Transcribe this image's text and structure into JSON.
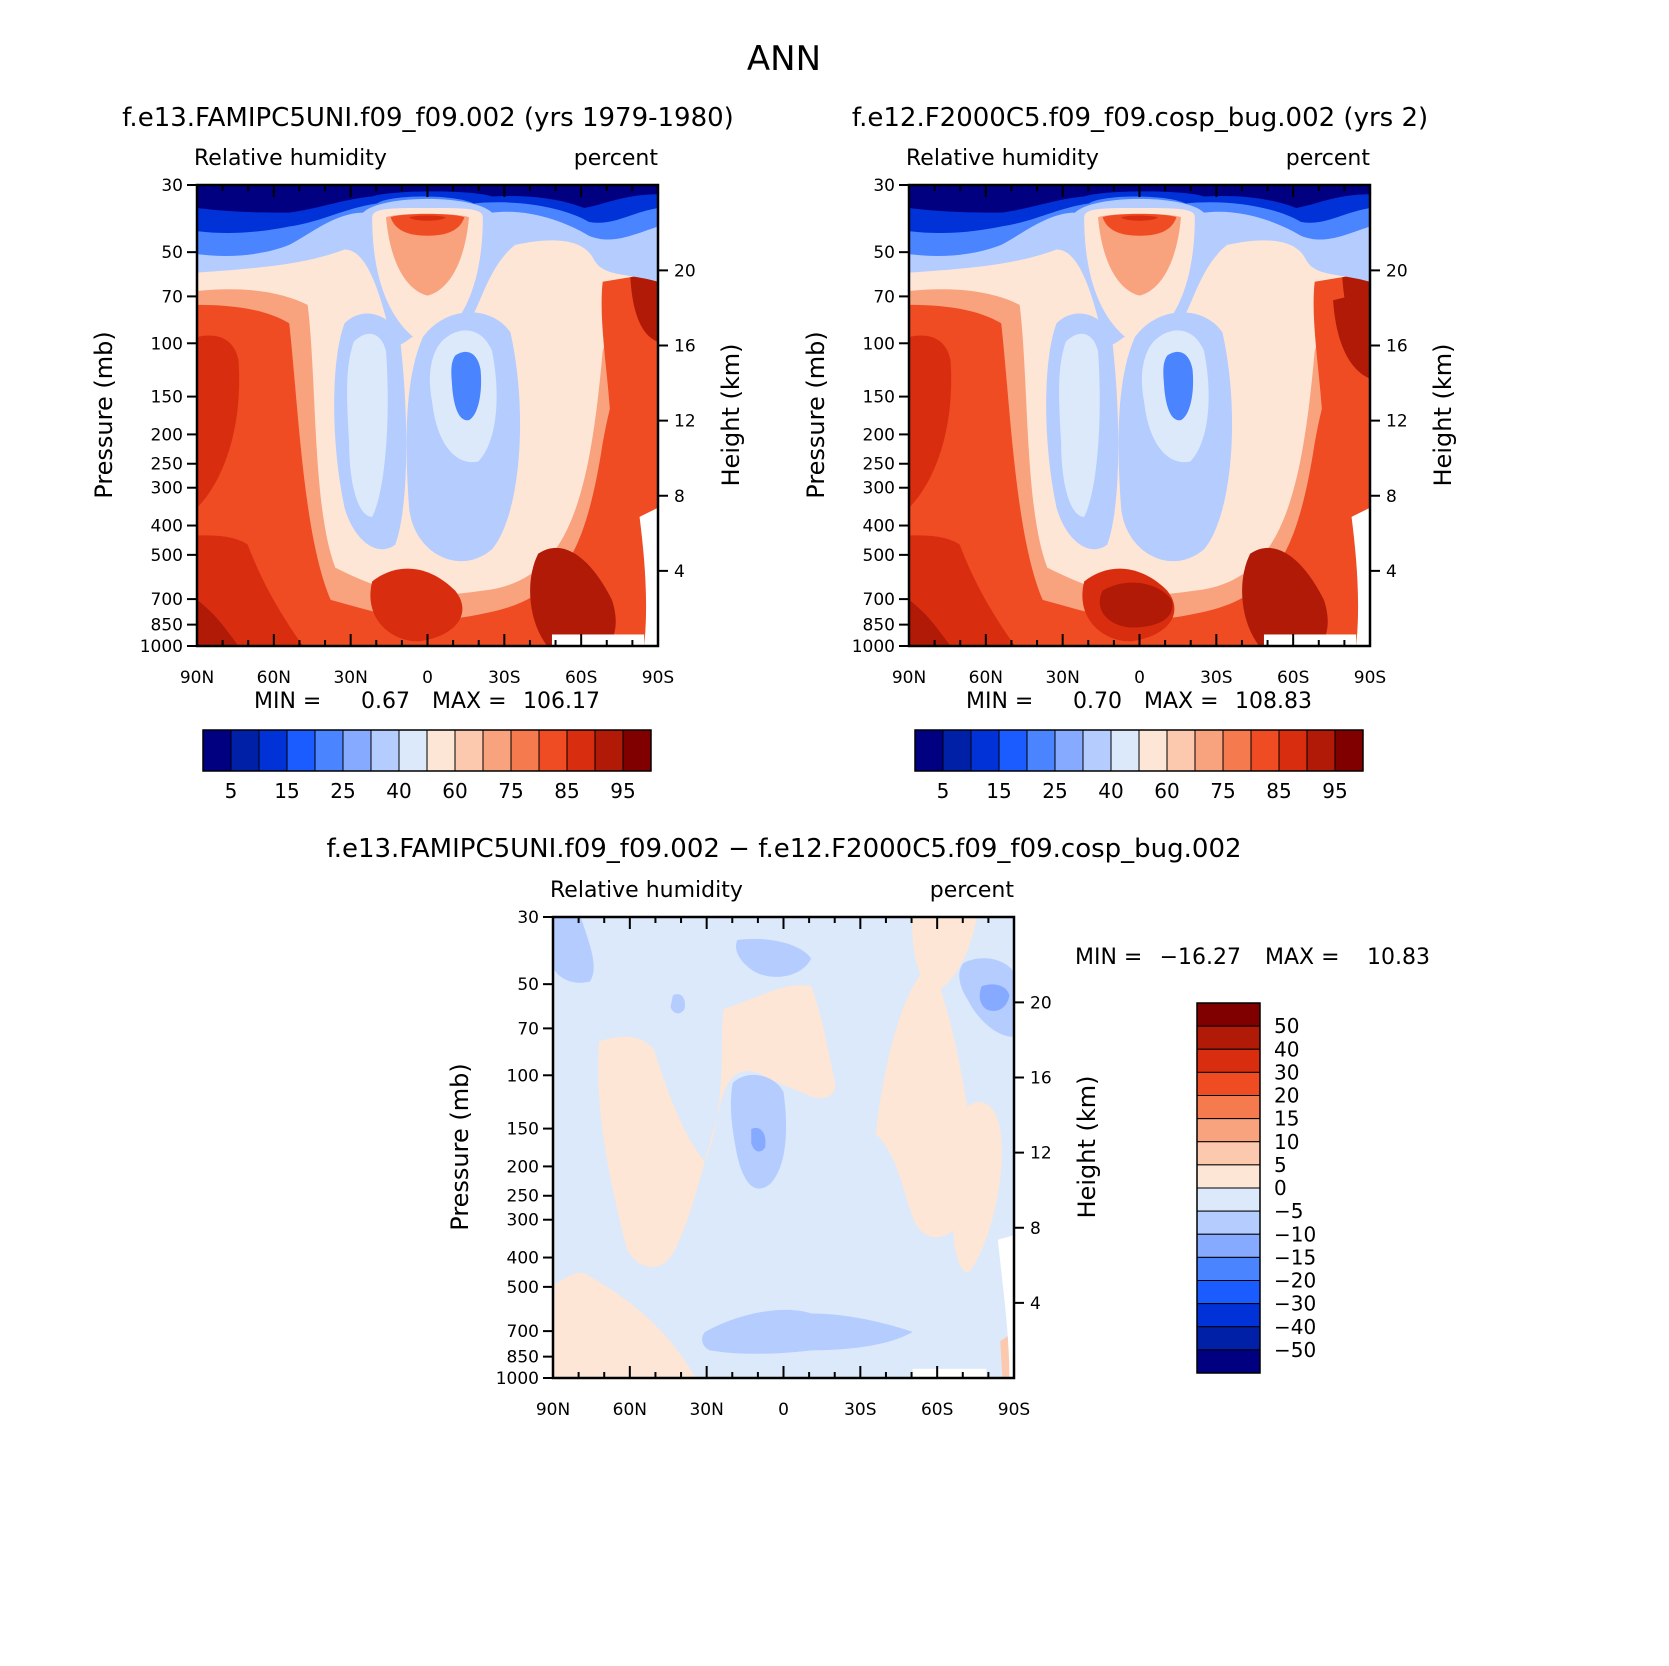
{
  "page": {
    "title": "ANN"
  },
  "palettes": {
    "abs": [
      "#000080",
      "#0020a8",
      "#0032d8",
      "#1a5cff",
      "#4a84ff",
      "#86aaff",
      "#b5ccff",
      "#dbe9fb",
      "#fde6d6",
      "#fcc9ae",
      "#f9a27e",
      "#f57b4f",
      "#ef4c23",
      "#d92d0f",
      "#b01a07",
      "#800000"
    ],
    "diff": [
      "#000080",
      "#0020a8",
      "#0032d8",
      "#1a5cff",
      "#4a84ff",
      "#86aaff",
      "#b5ccff",
      "#dbe9fb",
      "#fde6d6",
      "#fcc9ae",
      "#f9a27e",
      "#f57b4f",
      "#ef4c23",
      "#d92d0f",
      "#b01a07",
      "#800000"
    ]
  },
  "chart_data": [
    {
      "type": "contour",
      "panel": "test",
      "title": "f.e13.FAMIPC5UNI.f09_f09.002 (yrs 1979-1980)",
      "left_label": "Relative humidity",
      "right_label": "percent",
      "ylabel": "Pressure (mb)",
      "y2label": "Height (km)",
      "x_ticks": [
        "90N",
        "60N",
        "30N",
        "0",
        "30S",
        "60S",
        "90S"
      ],
      "y_ticks": [
        30,
        50,
        70,
        100,
        150,
        200,
        250,
        300,
        400,
        500,
        700,
        850,
        1000
      ],
      "y_tick_labels": [
        "30",
        "50",
        "70",
        "100",
        "150",
        "200",
        "250",
        "300",
        "400",
        "500",
        "700",
        "850",
        "1000"
      ],
      "y2_ticks": [
        20,
        16,
        12,
        8,
        4
      ],
      "stats": {
        "min_label": "MIN =",
        "min": "0.67",
        "max_label": "MAX =",
        "max": "106.17"
      },
      "legend_labels": [
        "5",
        "15",
        "25",
        "40",
        "60",
        "75",
        "85",
        "95"
      ]
    },
    {
      "type": "contour",
      "panel": "control",
      "title": "f.e12.F2000C5.f09_f09.cosp_bug.002 (yrs 2)",
      "left_label": "Relative humidity",
      "right_label": "percent",
      "ylabel": "Pressure (mb)",
      "y2label": "Height (km)",
      "x_ticks": [
        "90N",
        "60N",
        "30N",
        "0",
        "30S",
        "60S",
        "90S"
      ],
      "y_ticks": [
        30,
        50,
        70,
        100,
        150,
        200,
        250,
        300,
        400,
        500,
        700,
        850,
        1000
      ],
      "y_tick_labels": [
        "30",
        "50",
        "70",
        "100",
        "150",
        "200",
        "250",
        "300",
        "400",
        "500",
        "700",
        "850",
        "1000"
      ],
      "y2_ticks": [
        20,
        16,
        12,
        8,
        4
      ],
      "stats": {
        "min_label": "MIN =",
        "min": "0.70",
        "max_label": "MAX =",
        "max": "108.83"
      },
      "legend_labels": [
        "5",
        "15",
        "25",
        "40",
        "60",
        "75",
        "85",
        "95"
      ]
    },
    {
      "type": "contour",
      "panel": "difference",
      "title": "f.e13.FAMIPC5UNI.f09_f09.002 − f.e12.F2000C5.f09_f09.cosp_bug.002",
      "left_label": "Relative humidity",
      "right_label": "percent",
      "ylabel": "Pressure (mb)",
      "y2label": "Height (km)",
      "x_ticks": [
        "90N",
        "60N",
        "30N",
        "0",
        "30S",
        "60S",
        "90S"
      ],
      "y_ticks": [
        30,
        50,
        70,
        100,
        150,
        200,
        250,
        300,
        400,
        500,
        700,
        850,
        1000
      ],
      "y_tick_labels": [
        "30",
        "50",
        "70",
        "100",
        "150",
        "200",
        "250",
        "300",
        "400",
        "500",
        "700",
        "850",
        "1000"
      ],
      "y2_ticks": [
        20,
        16,
        12,
        8,
        4
      ],
      "stats": {
        "min_label": "MIN =",
        "min": "−16.27",
        "max_label": "MAX =",
        "max": "10.83"
      },
      "legend_labels": [
        "50",
        "40",
        "30",
        "20",
        "15",
        "10",
        "5",
        "0",
        "−5",
        "−10",
        "−15",
        "−20",
        "−30",
        "−40",
        "−50"
      ]
    }
  ]
}
